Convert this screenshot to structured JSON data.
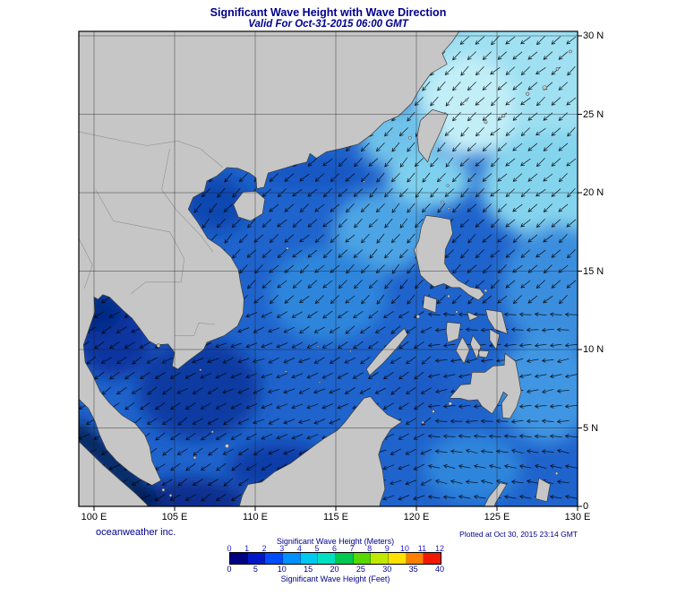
{
  "title": "Significant Wave Height with Wave Direction",
  "subtitle": "Valid For Oct-31-2015 06:00 GMT",
  "credit": "oceanweather inc.",
  "plotted": "Plotted at Oct 30, 2015 23:14 GMT",
  "axes": {
    "lon_ticks": [
      "100 E",
      "105 E",
      "110 E",
      "115 E",
      "120 E",
      "125 E",
      "130 E"
    ],
    "lon_values": [
      100,
      105,
      110,
      115,
      120,
      125,
      130
    ],
    "lat_ticks": [
      "30 N",
      "25 N",
      "20 N",
      "15 N",
      "10 N",
      "5 N",
      "0"
    ],
    "lat_values": [
      30,
      25,
      20,
      15,
      10,
      5,
      0
    ]
  },
  "legend": {
    "meters_title": "Significant Wave Height (Meters)",
    "feet_title": "Significant Wave Height (Feet)",
    "meters_ticks": [
      0,
      1,
      2,
      3,
      4,
      5,
      6,
      7,
      8,
      9,
      10,
      11,
      12
    ],
    "feet_ticks": [
      0,
      5,
      10,
      15,
      20,
      25,
      30,
      35,
      40
    ],
    "colors": [
      "#000082",
      "#0018c8",
      "#004cff",
      "#0090ff",
      "#00c8f0",
      "#00e0c0",
      "#00c850",
      "#58d800",
      "#c0e800",
      "#ffe000",
      "#ff8000",
      "#f01800"
    ]
  },
  "colors": {
    "accent_navy": "#00008b",
    "land": "#c6c6c6",
    "sea_base": "#1f63cc",
    "sea_high_cyan": "#9fe0f2",
    "sea_low_navy": "#041445",
    "grid": "#1a1a1a",
    "arrow": "#000000",
    "frame": "#000000"
  },
  "map": {
    "description": "Significant wave height field with wave direction arrows over the South China Sea and Western Pacific",
    "regions_shown": [
      "China",
      "Taiwan",
      "Hainan",
      "Vietnam",
      "Thailand",
      "Malay Peninsula",
      "Sumatra",
      "Borneo",
      "Philippines",
      "Ryukyu Islands",
      "Sulawesi"
    ]
  }
}
